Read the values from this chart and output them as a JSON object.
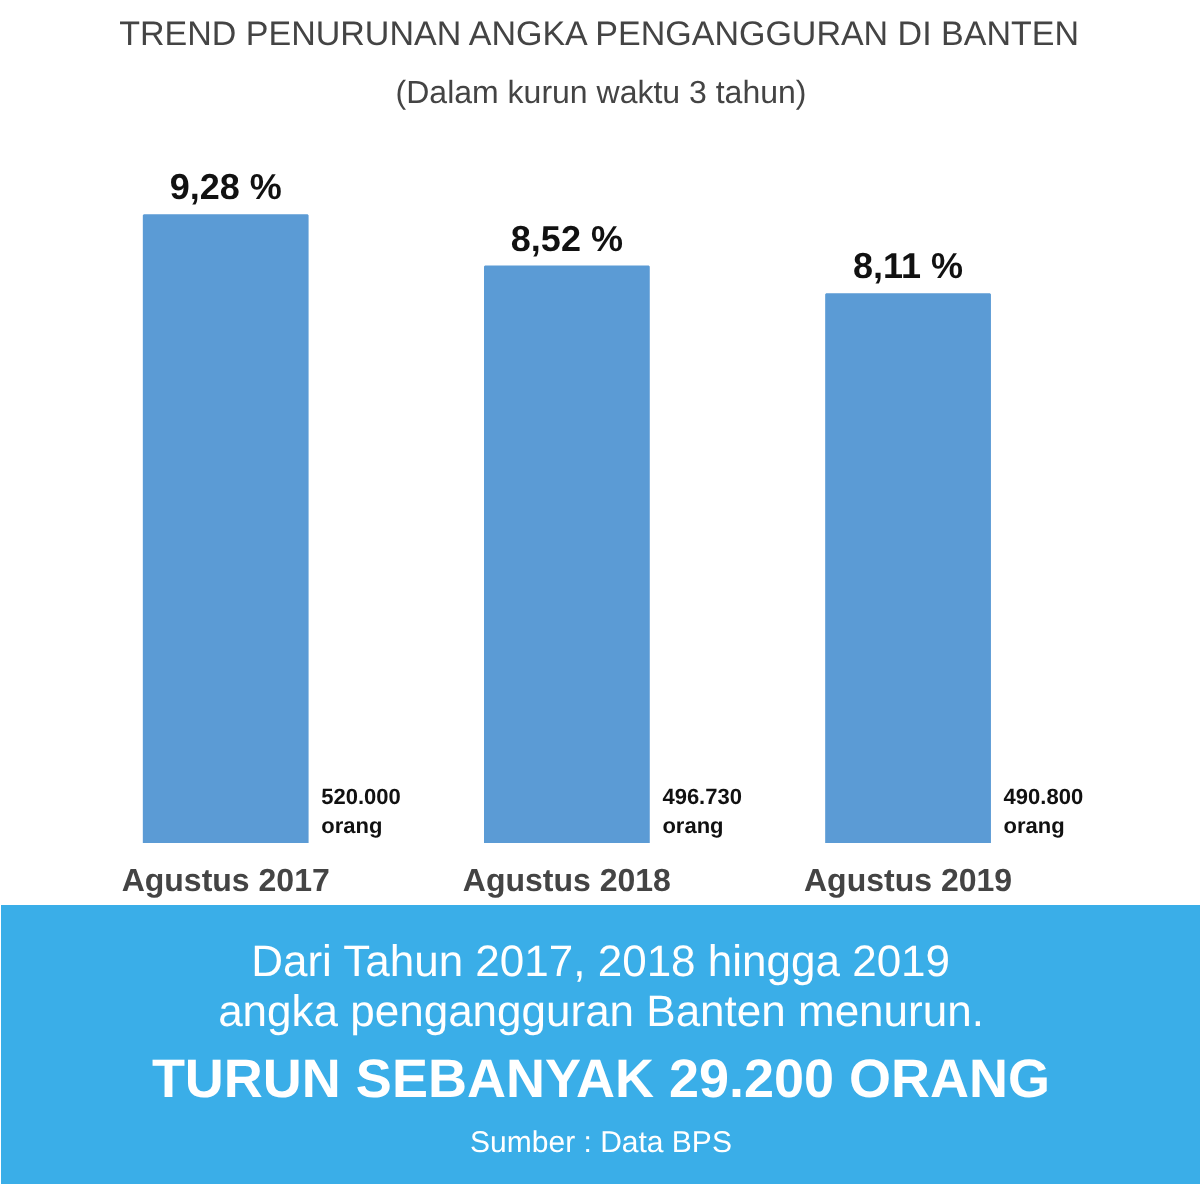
{
  "chart_data": {
    "type": "bar",
    "title": "TREND PENURUNAN ANGKA PENGANGGURAN DI BANTEN",
    "subtitle": "(Dalam kurun waktu 3 tahun)",
    "categories": [
      "Agustus 2017",
      "Agustus 2018",
      "Agustus 2019"
    ],
    "values": [
      9.28,
      8.52,
      8.11
    ],
    "color": "#5b9bd5",
    "value_labels": [
      "9,28 %",
      "8,52 %",
      "8,11 %"
    ],
    "annotations": [
      "520.000\norang",
      "496.730\norang",
      "490.800\norang",
      "Dari Tahun 2017, 2018 hingga 2019",
      "angka pengangguran Banten menurun.",
      "TURUN SEBANYAK 29.200 ORANG",
      "Sumber : Data BPS"
    ],
    "tick_labels": "x",
    "grid": false
  }
}
